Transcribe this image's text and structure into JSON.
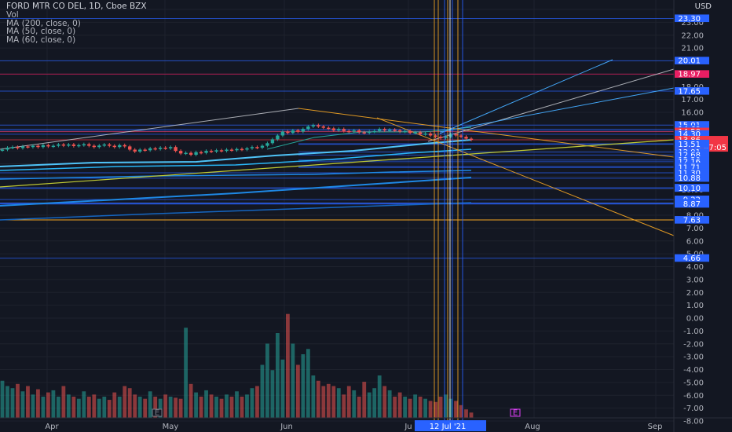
{
  "legend": {
    "title": "FORD MTR CO DEL, 1D, Cboe BZX",
    "vol": "Vol",
    "ma200": "MA (200, close, 0)",
    "ma50": "MA (50, close, 0)",
    "ma60": "MA (60, close, 0)"
  },
  "colors": {
    "background": "#131722",
    "up": "#26a69a",
    "down": "#ef5350",
    "label_blue": "#2962ff",
    "label_red": "#f23645",
    "label_pink": "#e91e63",
    "orange": "#f5a623",
    "yellow_green": "#c0ca33",
    "white_line": "#cfd2d8"
  },
  "chart_data": {
    "type": "candlestick",
    "currency": "USD",
    "y_ticks": [
      "24.00",
      "23.00",
      "22.00",
      "21.00",
      "20.00",
      "19.00",
      "18.00",
      "17.00",
      "16.00",
      "15.00",
      "14.00",
      "13.00",
      "12.00",
      "11.00",
      "10.00",
      "9.00",
      "8.00",
      "7.00",
      "6.00",
      "5.00",
      "4.00",
      "3.00",
      "2.00",
      "1.00",
      "0.00",
      "-1.00",
      "-2.00",
      "-3.00",
      "-4.00",
      "-5.00",
      "-6.00",
      "-7.00",
      "-8.00"
    ],
    "price_labels": [
      {
        "value": "23.30",
        "color": "blue"
      },
      {
        "value": "20.01",
        "color": "blue"
      },
      {
        "value": "18.97",
        "color": "pink"
      },
      {
        "value": "17.65",
        "color": "blue"
      },
      {
        "value": "15.01",
        "color": "blue"
      },
      {
        "value": "14.69",
        "color": "blue"
      },
      {
        "value": "14.54",
        "color": "blue"
      },
      {
        "value": "14.50",
        "color": "red"
      },
      {
        "value": "14.30",
        "color": "blue"
      },
      {
        "value": "13.86",
        "color": "red_current"
      },
      {
        "value": "13.56",
        "color": "blue"
      },
      {
        "value": "13.51",
        "color": "blue"
      },
      {
        "value": "12.91",
        "color": "blue"
      },
      {
        "value": "12.68",
        "color": "blue"
      },
      {
        "value": "12.29",
        "color": "blue"
      },
      {
        "value": "12.16",
        "color": "blue"
      },
      {
        "value": "11.79",
        "color": "blue"
      },
      {
        "value": "11.71",
        "color": "blue"
      },
      {
        "value": "11.30",
        "color": "blue"
      },
      {
        "value": "10.88",
        "color": "blue"
      },
      {
        "value": "10.13",
        "color": "blue"
      },
      {
        "value": "10.10",
        "color": "blue"
      },
      {
        "value": "9.22",
        "color": "blue"
      },
      {
        "value": "8.95",
        "color": "blue"
      },
      {
        "value": "8.91",
        "color": "blue"
      },
      {
        "value": "8.87",
        "color": "blue"
      },
      {
        "value": "7.63",
        "color": "blue"
      },
      {
        "value": "4.66",
        "color": "blue"
      }
    ],
    "countdown": "04:47:05",
    "x_labels": [
      "Apr",
      "May",
      "Jun",
      "Ju",
      "Aug",
      "Sep"
    ],
    "x_highlight": "12 Jul '21",
    "event_markers": [
      "E",
      "E"
    ],
    "candles": [
      13.1,
      13.25,
      13.3,
      13.22,
      13.35,
      13.3,
      13.4,
      13.3,
      13.45,
      13.35,
      13.4,
      13.5,
      13.42,
      13.5,
      13.38,
      13.45,
      13.52,
      13.4,
      13.3,
      13.42,
      13.5,
      13.4,
      13.3,
      13.45,
      13.35,
      13.1,
      12.95,
      13.1,
      13.05,
      13.2,
      13.15,
      13.25,
      13.2,
      13.3,
      13.0,
      12.8,
      12.85,
      12.7,
      12.9,
      12.85,
      13.0,
      12.95,
      13.05,
      13.0,
      13.1,
      13.05,
      13.15,
      13.1,
      13.2,
      13.3,
      13.25,
      13.4,
      13.6,
      13.9,
      14.2,
      14.5,
      14.4,
      14.6,
      14.5,
      14.7,
      14.9,
      15.0,
      14.9,
      14.8,
      14.75,
      14.6,
      14.7,
      14.55,
      14.5,
      14.6,
      14.45,
      14.4,
      14.5,
      14.55,
      14.7,
      14.6,
      14.65,
      14.6,
      14.5,
      14.55,
      14.4,
      14.45,
      14.3,
      14.35,
      14.2,
      14.1,
      14.0,
      14.1,
      14.3,
      14.2,
      14.1,
      13.95,
      13.86
    ],
    "volume": [
      0.35,
      0.3,
      0.28,
      0.32,
      0.25,
      0.3,
      0.22,
      0.27,
      0.2,
      0.24,
      0.26,
      0.2,
      0.3,
      0.22,
      0.2,
      0.18,
      0.25,
      0.2,
      0.22,
      0.18,
      0.2,
      0.17,
      0.24,
      0.2,
      0.3,
      0.28,
      0.22,
      0.2,
      0.18,
      0.25,
      0.2,
      0.18,
      0.22,
      0.2,
      0.19,
      0.18,
      0.85,
      0.32,
      0.24,
      0.2,
      0.26,
      0.22,
      0.2,
      0.18,
      0.22,
      0.2,
      0.25,
      0.2,
      0.22,
      0.28,
      0.3,
      0.5,
      0.7,
      0.45,
      0.8,
      0.55,
      0.98,
      0.7,
      0.5,
      0.6,
      0.65,
      0.4,
      0.35,
      0.3,
      0.32,
      0.3,
      0.28,
      0.22,
      0.3,
      0.26,
      0.2,
      0.34,
      0.24,
      0.28,
      0.4,
      0.3,
      0.26,
      0.2,
      0.24,
      0.2,
      0.18,
      0.22,
      0.2,
      0.18,
      0.16,
      0.15,
      0.2,
      0.22,
      0.18,
      0.16,
      0.12,
      0.08,
      0.05
    ]
  }
}
